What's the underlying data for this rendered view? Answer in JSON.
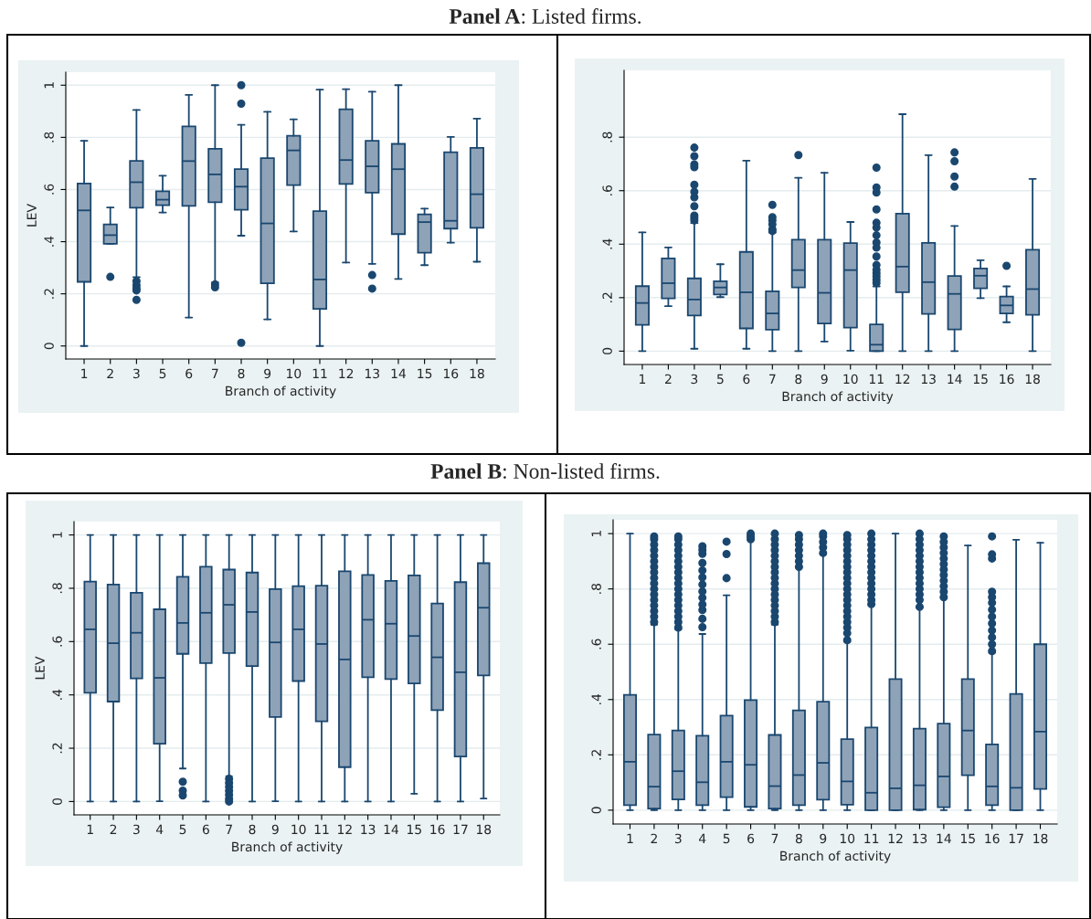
{
  "chart_data": [
    {
      "type": "box",
      "title": "Panel A: Listed firms.",
      "xlabel": "Branch of activity",
      "ylabel": "LEV",
      "grid": "y",
      "categories": [
        "1",
        "2",
        "3",
        "5",
        "6",
        "7",
        "8",
        "9",
        "10",
        "11",
        "12",
        "13",
        "14",
        "15",
        "16",
        "18"
      ],
      "ylim": [
        -0.05,
        1.05
      ],
      "yticks": [
        0,
        {
          "value": 0.2,
          "label": ".2"
        },
        {
          "value": 0.4,
          "label": ".4"
        },
        {
          "value": 0.6,
          "label": ".6"
        },
        {
          "value": 0.8,
          "label": ".8"
        },
        1
      ],
      "series": [
        {
          "color": "#8fa3b8",
          "boxes": [
            {
              "low": 0,
              "q1": 0.246,
              "median": 0.52,
              "q3": 0.623,
              "high": 0.787
            },
            {
              "low": 0.392,
              "q1": 0.392,
              "median": 0.425,
              "q3": 0.466,
              "high": 0.531,
              "outliers": [
                0.265
              ]
            },
            {
              "low": 0.264,
              "q1": 0.53,
              "median": 0.628,
              "q3": 0.71,
              "high": 0.905,
              "outliers": [
                0.249,
                0.233,
                0.221,
                0.213,
                0.177
              ]
            },
            {
              "low": 0.512,
              "q1": 0.54,
              "median": 0.561,
              "q3": 0.593,
              "high": 0.653
            },
            {
              "low": 0.109,
              "q1": 0.537,
              "median": 0.709,
              "q3": 0.842,
              "high": 0.963
            },
            {
              "low": 0.244,
              "q1": 0.551,
              "median": 0.658,
              "q3": 0.756,
              "high": 1,
              "outliers": [
                0.236,
                0.225
              ]
            },
            {
              "low": 0.423,
              "q1": 0.522,
              "median": 0.611,
              "q3": 0.678,
              "high": 0.848,
              "outliers": [
                1,
                0.929,
                0.012
              ]
            },
            {
              "low": 0.102,
              "q1": 0.24,
              "median": 0.47,
              "q3": 0.72,
              "high": 0.898
            },
            {
              "low": 0.439,
              "q1": 0.617,
              "median": 0.75,
              "q3": 0.806,
              "high": 0.869
            },
            {
              "low": 0,
              "q1": 0.142,
              "median": 0.255,
              "q3": 0.517,
              "high": 0.983
            },
            {
              "low": 0.32,
              "q1": 0.621,
              "median": 0.713,
              "q3": 0.908,
              "high": 0.985
            },
            {
              "low": 0.315,
              "q1": 0.588,
              "median": 0.689,
              "q3": 0.787,
              "high": 0.975,
              "outliers": [
                0.272,
                0.22
              ]
            },
            {
              "low": 0.257,
              "q1": 0.429,
              "median": 0.678,
              "q3": 0.775,
              "high": 1
            },
            {
              "low": 0.31,
              "q1": 0.358,
              "median": 0.475,
              "q3": 0.505,
              "high": 0.527
            },
            {
              "low": 0.396,
              "q1": 0.45,
              "median": 0.48,
              "q3": 0.743,
              "high": 0.802
            },
            {
              "low": 0.323,
              "q1": 0.453,
              "median": 0.582,
              "q3": 0.76,
              "high": 0.872
            }
          ]
        }
      ]
    },
    {
      "type": "box",
      "xlabel": "Branch of activity",
      "grid": "y",
      "categories": [
        "1",
        "2",
        "3",
        "5",
        "6",
        "7",
        "8",
        "9",
        "10",
        "11",
        "12",
        "13",
        "14",
        "15",
        "16",
        "18"
      ],
      "ylim": [
        -0.05,
        1.05
      ],
      "yticks": [
        0,
        {
          "value": 0.2,
          "label": ".2"
        },
        {
          "value": 0.4,
          "label": ".4"
        },
        {
          "value": 0.6,
          "label": ".6"
        },
        {
          "value": 0.8,
          "label": ".8"
        }
      ],
      "series": [
        {
          "color": "#8fa3b8",
          "boxes": [
            {
              "low": 0,
              "q1": 0.098,
              "median": 0.18,
              "q3": 0.243,
              "high": 0.444
            },
            {
              "low": 0.168,
              "q1": 0.197,
              "median": 0.254,
              "q3": 0.347,
              "high": 0.388
            },
            {
              "low": 0.009,
              "q1": 0.133,
              "median": 0.193,
              "q3": 0.272,
              "high": 0.479,
              "outliers": [
                0.761,
                0.729,
                0.698,
                0.688,
                0.622,
                0.596,
                0.575,
                0.542,
                0.507,
                0.498,
                0.489
              ]
            },
            {
              "low": 0.202,
              "q1": 0.212,
              "median": 0.238,
              "q3": 0.261,
              "high": 0.325
            },
            {
              "low": 0.009,
              "q1": 0.085,
              "median": 0.22,
              "q3": 0.371,
              "high": 0.712
            },
            {
              "low": 0,
              "q1": 0.08,
              "median": 0.141,
              "q3": 0.224,
              "high": 0.444,
              "outliers": [
                0.547,
                0.501,
                0.489,
                0.474,
                0.456,
                0.449
              ]
            },
            {
              "low": 0,
              "q1": 0.238,
              "median": 0.303,
              "q3": 0.417,
              "high": 0.648,
              "outliers": [
                0.733
              ]
            },
            {
              "low": 0.036,
              "q1": 0.103,
              "median": 0.218,
              "q3": 0.417,
              "high": 0.667
            },
            {
              "low": 0.002,
              "q1": 0.088,
              "median": 0.303,
              "q3": 0.404,
              "high": 0.483
            },
            {
              "low": 0,
              "q1": 0,
              "median": 0.024,
              "q3": 0.1,
              "high": 0.242,
              "outliers": [
                0.686,
                0.612,
                0.593,
                0.53,
                0.48,
                0.462,
                0.433,
                0.406,
                0.387,
                0.354,
                0.322,
                0.304,
                0.292,
                0.28,
                0.267,
                0.255
              ]
            },
            {
              "low": 0,
              "q1": 0.22,
              "median": 0.316,
              "q3": 0.514,
              "high": 0.886
            },
            {
              "low": 0,
              "q1": 0.139,
              "median": 0.258,
              "q3": 0.405,
              "high": 0.733
            },
            {
              "low": 0,
              "q1": 0.081,
              "median": 0.214,
              "q3": 0.281,
              "high": 0.468,
              "outliers": [
                0.743,
                0.71,
                0.653,
                0.615
              ]
            },
            {
              "low": 0.198,
              "q1": 0.235,
              "median": 0.282,
              "q3": 0.309,
              "high": 0.34
            },
            {
              "low": 0.108,
              "q1": 0.141,
              "median": 0.171,
              "q3": 0.204,
              "high": 0.242,
              "outliers": [
                0.319
              ]
            },
            {
              "low": 0,
              "q1": 0.136,
              "median": 0.232,
              "q3": 0.379,
              "high": 0.644
            }
          ]
        }
      ]
    },
    {
      "type": "box",
      "title": "Panel B: Non-listed firms.",
      "xlabel": "Branch of activity",
      "ylabel": "LEV",
      "grid": "y",
      "categories": [
        "1",
        "2",
        "3",
        "4",
        "5",
        "6",
        "7",
        "8",
        "9",
        "10",
        "11",
        "12",
        "13",
        "14",
        "15",
        "16",
        "17",
        "18"
      ],
      "ylim": [
        -0.05,
        1.05
      ],
      "yticks": [
        0,
        {
          "value": 0.2,
          "label": ".2"
        },
        {
          "value": 0.4,
          "label": ".4"
        },
        {
          "value": 0.6,
          "label": ".6"
        },
        {
          "value": 0.8,
          "label": ".8"
        },
        1
      ],
      "series": [
        {
          "color": "#8fa3b8",
          "boxes": [
            {
              "low": 0,
              "q1": 0.408,
              "median": 0.646,
              "q3": 0.825,
              "high": 1
            },
            {
              "low": 0,
              "q1": 0.375,
              "median": 0.594,
              "q3": 0.814,
              "high": 1
            },
            {
              "low": 0,
              "q1": 0.462,
              "median": 0.633,
              "q3": 0.783,
              "high": 1
            },
            {
              "low": 0.001,
              "q1": 0.217,
              "median": 0.464,
              "q3": 0.721,
              "high": 1
            },
            {
              "low": 0.124,
              "q1": 0.554,
              "median": 0.67,
              "q3": 0.843,
              "high": 1,
              "outliers": [
                0.074,
                0.041,
                0.023
              ]
            },
            {
              "low": 0,
              "q1": 0.519,
              "median": 0.708,
              "q3": 0.881,
              "high": 1
            },
            {
              "low": 0.095,
              "q1": 0.557,
              "median": 0.738,
              "q3": 0.87,
              "high": 1,
              "outliers": [
                0.085,
                0.07,
                0.055,
                0.04,
                0.025,
                0.01,
                0
              ]
            },
            {
              "low": 0,
              "q1": 0.508,
              "median": 0.711,
              "q3": 0.859,
              "high": 1
            },
            {
              "low": 0.001,
              "q1": 0.317,
              "median": 0.597,
              "q3": 0.797,
              "high": 1
            },
            {
              "low": 0,
              "q1": 0.452,
              "median": 0.646,
              "q3": 0.808,
              "high": 1
            },
            {
              "low": 0,
              "q1": 0.301,
              "median": 0.591,
              "q3": 0.81,
              "high": 1
            },
            {
              "low": 0,
              "q1": 0.129,
              "median": 0.533,
              "q3": 0.864,
              "high": 1
            },
            {
              "low": 0,
              "q1": 0.466,
              "median": 0.682,
              "q3": 0.85,
              "high": 1
            },
            {
              "low": 0,
              "q1": 0.459,
              "median": 0.667,
              "q3": 0.828,
              "high": 1
            },
            {
              "low": 0.029,
              "q1": 0.443,
              "median": 0.621,
              "q3": 0.848,
              "high": 1
            },
            {
              "low": 0,
              "q1": 0.343,
              "median": 0.541,
              "q3": 0.743,
              "high": 1
            },
            {
              "low": 0,
              "q1": 0.169,
              "median": 0.485,
              "q3": 0.823,
              "high": 1
            },
            {
              "low": 0.011,
              "q1": 0.473,
              "median": 0.727,
              "q3": 0.894,
              "high": 1
            }
          ]
        }
      ]
    },
    {
      "type": "box",
      "xlabel": "Branch of activity",
      "grid": "y",
      "categories": [
        "1",
        "2",
        "3",
        "4",
        "5",
        "6",
        "7",
        "8",
        "9",
        "10",
        "11",
        "12",
        "13",
        "14",
        "15",
        "16",
        "17",
        "18"
      ],
      "ylim": [
        -0.05,
        1.05
      ],
      "yticks": [
        0,
        {
          "value": 0.2,
          "label": ".2"
        },
        {
          "value": 0.4,
          "label": ".4"
        },
        {
          "value": 0.6,
          "label": ".6"
        },
        {
          "value": 0.8,
          "label": ".8"
        },
        1
      ],
      "series": [
        {
          "color": "#8fa3b8",
          "boxes": [
            {
              "low": 0,
              "q1": 0.018,
              "median": 0.175,
              "q3": 0.417,
              "high": 1
            },
            {
              "low": 0,
              "q1": 0.006,
              "median": 0.085,
              "q3": 0.273,
              "high": 0.671,
              "outliers": [
                0.68,
                0.7,
                0.72,
                0.74,
                0.76,
                0.78,
                0.8,
                0.82,
                0.84,
                0.86,
                0.88,
                0.9,
                0.92,
                0.94,
                0.96,
                0.98,
                0.99
              ]
            },
            {
              "low": 0,
              "q1": 0.039,
              "median": 0.141,
              "q3": 0.288,
              "high": 0.654,
              "outliers": [
                0.66,
                0.68,
                0.7,
                0.72,
                0.74,
                0.76,
                0.78,
                0.8,
                0.82,
                0.84,
                0.86,
                0.88,
                0.9,
                0.92,
                0.94,
                0.96,
                0.98,
                0.99
              ]
            },
            {
              "low": 0,
              "q1": 0.018,
              "median": 0.101,
              "q3": 0.269,
              "high": 0.637,
              "outliers": [
                0.662,
                0.692,
                0.724,
                0.744,
                0.768,
                0.791,
                0.816,
                0.842,
                0.867,
                0.894,
                0.927,
                0.941,
                0.954
              ]
            },
            {
              "low": 0,
              "q1": 0.047,
              "median": 0.175,
              "q3": 0.342,
              "high": 0.777,
              "outliers": [
                0.839,
                0.926,
                0.971
              ]
            },
            {
              "low": 0,
              "q1": 0.012,
              "median": 0.164,
              "q3": 0.398,
              "high": 0.977,
              "outliers": [
                0.98,
                0.99,
                1
              ]
            },
            {
              "low": 0,
              "q1": 0.006,
              "median": 0.087,
              "q3": 0.272,
              "high": 0.671,
              "outliers": [
                0.68,
                0.7,
                0.72,
                0.74,
                0.76,
                0.78,
                0.8,
                0.82,
                0.84,
                0.86,
                0.88,
                0.9,
                0.92,
                0.94,
                0.96,
                0.98,
                1
              ]
            },
            {
              "low": 0,
              "q1": 0.018,
              "median": 0.127,
              "q3": 0.361,
              "high": 0.877,
              "outliers": [
                0.88,
                0.9,
                0.92,
                0.94,
                0.96,
                0.98,
                0.995
              ]
            },
            {
              "low": 0,
              "q1": 0.038,
              "median": 0.171,
              "q3": 0.392,
              "high": 0.926,
              "outliers": [
                0.93,
                0.95,
                0.97,
                0.99,
                1
              ]
            },
            {
              "low": 0,
              "q1": 0.02,
              "median": 0.104,
              "q3": 0.257,
              "high": 0.609,
              "outliers": [
                0.615,
                0.64,
                0.66,
                0.68,
                0.7,
                0.72,
                0.74,
                0.76,
                0.78,
                0.8,
                0.82,
                0.84,
                0.86,
                0.88,
                0.9,
                0.92,
                0.94,
                0.96,
                0.98,
                0.995
              ]
            },
            {
              "low": 0,
              "q1": 0,
              "median": 0.063,
              "q3": 0.299,
              "high": 0.742,
              "outliers": [
                0.745,
                0.76,
                0.78,
                0.8,
                0.82,
                0.84,
                0.86,
                0.88,
                0.9,
                0.92,
                0.94,
                0.96,
                0.98,
                1
              ]
            },
            {
              "low": 0,
              "q1": 0,
              "median": 0.079,
              "q3": 0.474,
              "high": 1
            },
            {
              "low": 0,
              "q1": 0.002,
              "median": 0.09,
              "q3": 0.295,
              "high": 0.732,
              "outliers": [
                0.735,
                0.76,
                0.78,
                0.8,
                0.82,
                0.84,
                0.86,
                0.88,
                0.9,
                0.92,
                0.94,
                0.96,
                0.98,
                1
              ]
            },
            {
              "low": 0,
              "q1": 0.011,
              "median": 0.122,
              "q3": 0.313,
              "high": 0.768,
              "outliers": [
                0.77,
                0.79,
                0.81,
                0.83,
                0.85,
                0.87,
                0.89,
                0.91,
                0.93,
                0.95,
                0.97,
                0.99
              ]
            },
            {
              "low": 0,
              "q1": 0.126,
              "median": 0.288,
              "q3": 0.474,
              "high": 0.957
            },
            {
              "low": 0,
              "q1": 0.018,
              "median": 0.086,
              "q3": 0.238,
              "high": 0.569,
              "outliers": [
                0.575,
                0.6,
                0.625,
                0.65,
                0.675,
                0.7,
                0.725,
                0.75,
                0.77,
                0.79,
                0.91,
                0.925,
                0.99
              ]
            },
            {
              "low": 0,
              "q1": 0,
              "median": 0.081,
              "q3": 0.42,
              "high": 0.978
            },
            {
              "low": 0,
              "q1": 0.077,
              "median": 0.284,
              "q3": 0.6,
              "high": 0.967
            }
          ]
        }
      ]
    }
  ]
}
